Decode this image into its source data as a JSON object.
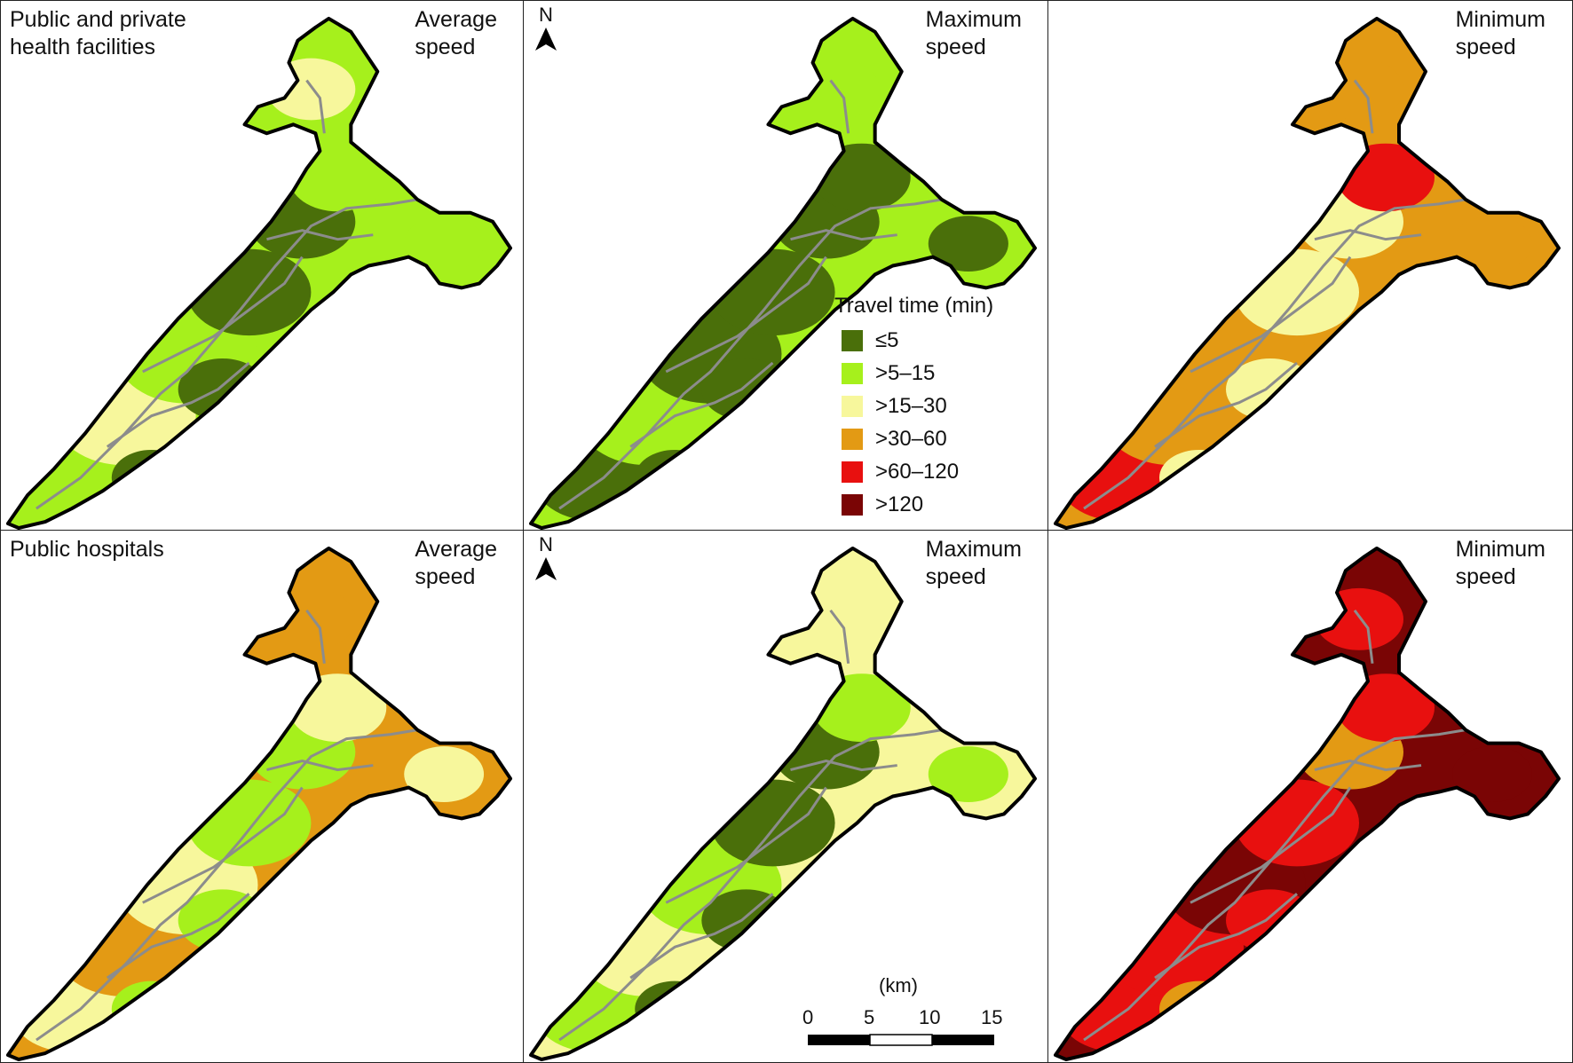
{
  "rows": [
    {
      "title": "Public and private\nhealth facilities",
      "panels": [
        {
          "label": "Average\nspeed",
          "north": false,
          "scheme": [
            1,
            1,
            2,
            1,
            0,
            0
          ]
        },
        {
          "label": "Maximum\nspeed",
          "north": true,
          "scheme": [
            1,
            0,
            1,
            0,
            0,
            0
          ]
        },
        {
          "label": "Minimum\nspeed",
          "north": false,
          "scheme": [
            3,
            4,
            3,
            3,
            2,
            2
          ]
        }
      ]
    },
    {
      "title": "Public hospitals",
      "panels": [
        {
          "label": "Average\nspeed",
          "north": false,
          "scheme": [
            3,
            2,
            3,
            2,
            1,
            1
          ]
        },
        {
          "label": "Maximum\nspeed",
          "north": true,
          "scheme": [
            2,
            1,
            2,
            1,
            0,
            0
          ]
        },
        {
          "label": "Minimum\nspeed",
          "north": false,
          "scheme": [
            5,
            4,
            4,
            5,
            4,
            3
          ]
        }
      ]
    }
  ],
  "north_label": "N",
  "legend": {
    "title": "Travel time (min)",
    "classes": [
      {
        "label": "≤5",
        "color": "#4a6f0a"
      },
      {
        "label": ">5–15",
        "color": "#a6f01c"
      },
      {
        "label": ">15–30",
        "color": "#f7f79c"
      },
      {
        "label": ">30–60",
        "color": "#e39a14"
      },
      {
        "label": ">60–120",
        "color": "#e8100f"
      },
      {
        "label": ">120",
        "color": "#7a0505"
      }
    ]
  },
  "scale": {
    "unit": "(km)",
    "ticks": [
      "0",
      "5",
      "10",
      "15"
    ]
  },
  "colors": {
    "road": "#8c8c8c",
    "outline": "#000000"
  }
}
